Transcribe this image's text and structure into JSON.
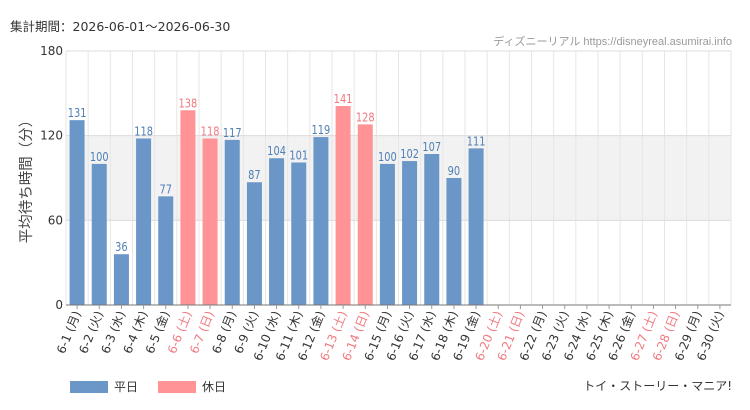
{
  "header": {
    "period_label": "集計期間：2026-06-01～2026-06-30",
    "source": "ディズニーリアル https://disneyreal.asumirai.info",
    "attraction": "トイ・ストーリー・マニア!"
  },
  "chart_data": {
    "type": "bar",
    "ylabel": "平均待ち時間（分）",
    "ylim": [
      0,
      180
    ],
    "yticks": [
      0,
      60,
      120,
      180
    ],
    "band": [
      60,
      120
    ],
    "categories": [
      "6-1 (月)",
      "6-2 (火)",
      "6-3 (水)",
      "6-4 (木)",
      "6-5 (金)",
      "6-6 (土)",
      "6-7 (日)",
      "6-8 (月)",
      "6-9 (火)",
      "6-10 (水)",
      "6-11 (木)",
      "6-12 (金)",
      "6-13 (土)",
      "6-14 (日)",
      "6-15 (月)",
      "6-16 (火)",
      "6-17 (水)",
      "6-18 (木)",
      "6-19 (金)",
      "6-20 (土)",
      "6-21 (日)",
      "6-22 (月)",
      "6-23 (火)",
      "6-24 (水)",
      "6-25 (木)",
      "6-26 (金)",
      "6-27 (土)",
      "6-28 (日)",
      "6-29 (月)",
      "6-30 (火)"
    ],
    "values": [
      131,
      100,
      36,
      118,
      77,
      138,
      118,
      117,
      87,
      104,
      101,
      119,
      141,
      128,
      100,
      102,
      107,
      90,
      111,
      null,
      null,
      null,
      null,
      null,
      null,
      null,
      null,
      null,
      null,
      null
    ],
    "holiday": [
      false,
      false,
      false,
      false,
      false,
      true,
      true,
      false,
      false,
      false,
      false,
      false,
      true,
      true,
      false,
      false,
      false,
      false,
      false,
      true,
      true,
      false,
      false,
      false,
      false,
      false,
      true,
      true,
      false,
      false
    ],
    "series": [
      {
        "name": "平日",
        "color": "#6a96c8"
      },
      {
        "name": "休日",
        "color": "#ff9396"
      }
    ],
    "colors": {
      "weekday_bar": "#6a96c8",
      "holiday_bar": "#ff9396",
      "weekday_label": "#4f7fb5",
      "holiday_label": "#f07a80",
      "holiday_tick": "#f07a80",
      "weekday_tick": "#333333"
    }
  }
}
